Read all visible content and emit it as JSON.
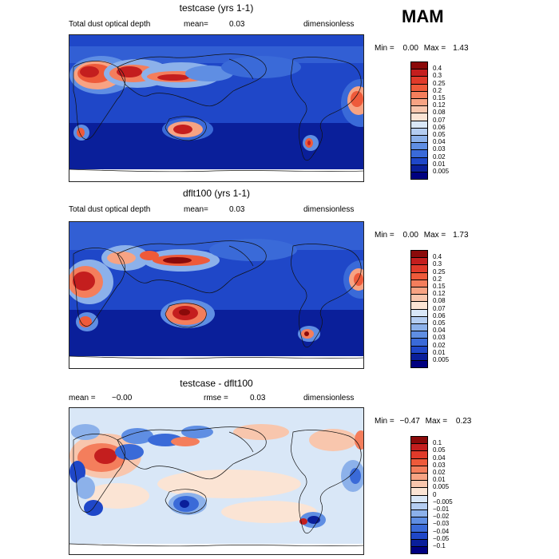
{
  "season": "MAM",
  "panels": [
    {
      "title": "testcase (yrs 1-1)",
      "variable": "Total dust optical depth",
      "stat1_label": "mean=",
      "stat1_value": "0.03",
      "units": "dimensionless",
      "min_label": "Min =",
      "min_value": "0.00",
      "max_label": "Max =",
      "max_value": "1.43"
    },
    {
      "title": "dflt100 (yrs 1-1)",
      "variable": "Total dust optical depth",
      "stat1_label": "mean=",
      "stat1_value": "0.03",
      "units": "dimensionless",
      "min_label": "Min =",
      "min_value": "0.00",
      "max_label": "Max =",
      "max_value": "1.73"
    },
    {
      "title": "testcase - dflt100",
      "mean_label": "mean =",
      "mean_value": "−0.00",
      "rmse_label": "rmse =",
      "rmse_value": "0.03",
      "units": "dimensionless",
      "min_label": "Min =",
      "min_value": "−0.47",
      "max_label": "Max =",
      "max_value": "0.23"
    }
  ],
  "colorbar_abs": {
    "labels": [
      "0.4",
      "0.3",
      "0.25",
      "0.2",
      "0.15",
      "0.12",
      "0.08",
      "0.07",
      "0.06",
      "0.05",
      "0.04",
      "0.03",
      "0.02",
      "0.01",
      "0.005"
    ],
    "colors": [
      "#8b0a0a",
      "#c41e1e",
      "#e03a2a",
      "#ee5a3a",
      "#f47e5c",
      "#f7a383",
      "#f8c6ad",
      "#fbe4d4",
      "#d9e7f7",
      "#b4cdf1",
      "#8cb1ea",
      "#5f8ee3",
      "#3a6ad8",
      "#1f47c8",
      "#0a1f9a",
      "#000080"
    ]
  },
  "colorbar_diff": {
    "labels": [
      "0.1",
      "0.05",
      "0.04",
      "0.03",
      "0.02",
      "0.01",
      "0.005",
      "0",
      "−0.005",
      "−0.01",
      "−0.02",
      "−0.03",
      "−0.04",
      "−0.05",
      "−0.1"
    ],
    "colors": [
      "#8b0a0a",
      "#c41e1e",
      "#e03a2a",
      "#ee5a3a",
      "#f47e5c",
      "#f7a383",
      "#f8c6ad",
      "#fbe4d4",
      "#d9e7f7",
      "#b4cdf1",
      "#8cb1ea",
      "#5f8ee3",
      "#3a6ad8",
      "#1f47c8",
      "#0a1f9a",
      "#000080"
    ]
  }
}
